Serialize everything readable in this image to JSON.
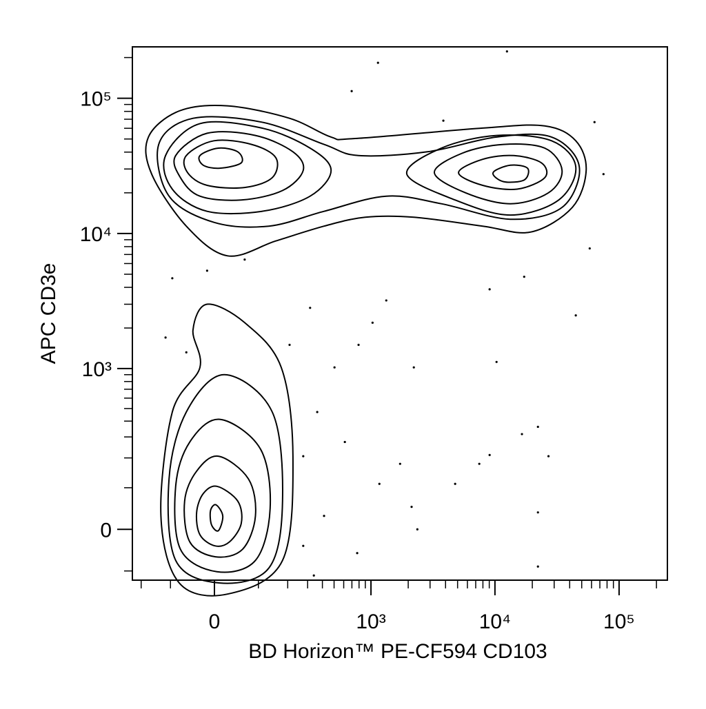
{
  "chart_data": {
    "type": "contour",
    "xlabel": "BD Horizon™ PE-CF594 CD103",
    "ylabel": "APC CD3e",
    "xscale": "biexponential",
    "yscale": "biexponential",
    "xlim": [
      -240,
      245000
    ],
    "ylim": [
      -127,
      240000
    ],
    "xticks": [
      0,
      {
        "value": 1000,
        "label": "10³"
      },
      {
        "value": 10000,
        "label": "10⁴"
      },
      {
        "value": 100000,
        "label": "10⁵"
      }
    ],
    "yticks": [
      0,
      {
        "value": 1000,
        "label": "10³"
      },
      {
        "value": 10000,
        "label": "10⁴"
      },
      {
        "value": 100000,
        "label": "10⁵"
      }
    ],
    "xminorticks": [
      -200,
      -100,
      100,
      200,
      300,
      400,
      500,
      600,
      700,
      800,
      900,
      2000,
      3000,
      4000,
      5000,
      6000,
      7000,
      8000,
      9000,
      20000,
      30000,
      40000,
      50000,
      60000,
      70000,
      80000,
      90000,
      200000
    ],
    "yminorticks": [
      -100,
      100,
      200,
      300,
      400,
      500,
      600,
      700,
      800,
      900,
      2000,
      3000,
      4000,
      5000,
      6000,
      7000,
      8000,
      9000,
      20000,
      30000,
      40000,
      50000,
      60000,
      70000,
      80000,
      90000,
      200000
    ],
    "color": "#000000",
    "contours": [
      {
        "x": [
          -15,
          65,
          174,
          223,
          179,
          27,
          -77,
          -128,
          -95,
          -30,
          -45
        ],
        "y": [
          3000,
          2190,
          1020,
          207,
          -72,
          -174,
          -136,
          30,
          470,
          1020,
          1930
        ]
      },
      {
        "x": [
          20,
          142,
          179,
          131,
          11,
          -86,
          -104,
          -60
        ],
        "y": [
          900,
          470,
          65,
          -92,
          -136,
          -72,
          126,
          470
        ]
      },
      {
        "x": [
          11,
          106,
          135,
          92,
          5,
          -74,
          -86,
          -52
        ],
        "y": [
          413,
          238,
          47,
          -72,
          -102,
          -45,
          104,
          273
        ]
      },
      {
        "x": [
          8,
          74,
          92,
          60,
          2,
          -52,
          -64,
          -37
        ],
        "y": [
          207,
          126,
          30,
          -45,
          -63,
          -28,
          65,
          151
        ]
      },
      {
        "x": [
          5,
          49,
          57,
          31,
          1,
          -30,
          -37,
          -23
        ],
        "y": [
          104,
          65,
          13,
          -28,
          -37,
          -12,
          38,
          84
        ]
      },
      {
        "x": [
          3,
          17,
          8,
          -6,
          -8
        ],
        "y": [
          56,
          30,
          -3,
          10,
          42
        ]
      },
      {
        "x": [
          -171,
          -77,
          27,
          208,
          472,
          745,
          7970,
          25200,
          44800,
          54300,
          42000,
          19500,
          7970,
          2220,
          900,
          413,
          154,
          27,
          -60,
          -159
        ],
        "y": [
          51700,
          80600,
          87900,
          71100,
          51700,
          50400,
          60200,
          62500,
          48500,
          29300,
          15600,
          10260,
          11340,
          13200,
          13200,
          11340,
          8810,
          6840,
          11340,
          27500
        ]
      },
      {
        "x": [
          -135,
          -45,
          110,
          413,
          793,
          2860,
          10300,
          28600,
          47800,
          34700,
          13300,
          3700,
          1330,
          413,
          131,
          -1,
          -104
        ],
        "y": [
          45600,
          71100,
          66600,
          45600,
          37700,
          40200,
          51700,
          51700,
          31200,
          15600,
          12750,
          16600,
          18900,
          14600,
          11340,
          12100,
          18900
        ]
      },
      {
        "x": [
          -114,
          -30,
          110,
          315,
          472,
          315,
          110,
          -15,
          -95
        ],
        "y": [
          37700,
          65000,
          60200,
          42800,
          29300,
          18900,
          14600,
          14600,
          21300
        ]
      },
      {
        "x": [
          -86,
          -15,
          92,
          223,
          275,
          179,
          57,
          -30,
          -74
        ],
        "y": [
          37700,
          55100,
          53100,
          40200,
          29300,
          20800,
          17700,
          18900,
          25900
        ]
      },
      {
        "x": [
          -60,
          -1,
          82,
          154,
          142,
          65,
          -15,
          -57
        ],
        "y": [
          37700,
          48500,
          45600,
          36400,
          25900,
          21900,
          22700,
          28200
        ]
      },
      {
        "x": [
          -30,
          8,
          49,
          57,
          11,
          -23
        ],
        "y": [
          37700,
          42800,
          40200,
          33300,
          30400,
          32000
        ]
      },
      {
        "x": [
          1950,
          3700,
          10300,
          28600,
          44800,
          32600,
          13300,
          4780
        ],
        "y": [
          27500,
          42800,
          53100,
          48500,
          31200,
          17700,
          13700,
          17700
        ]
      },
      {
        "x": [
          3250,
          5430,
          11700,
          25200,
          34700,
          27000,
          13300,
          5790
        ],
        "y": [
          28200,
          39200,
          45600,
          42800,
          29300,
          20000,
          16600,
          20000
        ]
      },
      {
        "x": [
          5090,
          7970,
          14200,
          23700,
          25200,
          15100,
          7970
        ],
        "y": [
          28200,
          35400,
          37700,
          33300,
          25900,
          21300,
          22700
        ]
      },
      {
        "x": [
          9660,
          13300,
          18300,
          17200,
          11700
        ],
        "y": [
          28200,
          32000,
          30400,
          24900,
          24200
        ]
      }
    ],
    "events": {
      "x": [
        12500,
        1140,
        697,
        63400,
        3840,
        74900,
        58000,
        44800,
        10300,
        9060,
        17200,
        22200,
        16500,
        27000,
        7480,
        9060,
        4780,
        22200,
        22200,
        2370,
        2130,
        1720,
        1170,
        773,
        339,
        275,
        413,
        613,
        504,
        793,
        1330,
        1030,
        315,
        208,
        362,
        275,
        2220,
        -95,
        -15,
        65,
        -114,
        -60
      ],
      "y": [
        222000,
        183000,
        113000,
        66600,
        68300,
        27500,
        7760,
        2480,
        1120,
        3870,
        4790,
        361,
        316,
        207,
        177,
        212,
        111,
        38,
        -88,
        0,
        51,
        177,
        111,
        -54,
        -113,
        -37,
        30,
        273,
        1020,
        1500,
        3200,
        2190,
        2820,
        1500,
        470,
        207,
        1020,
        4670,
        5310,
        6420,
        1700,
        1320
      ]
    }
  }
}
